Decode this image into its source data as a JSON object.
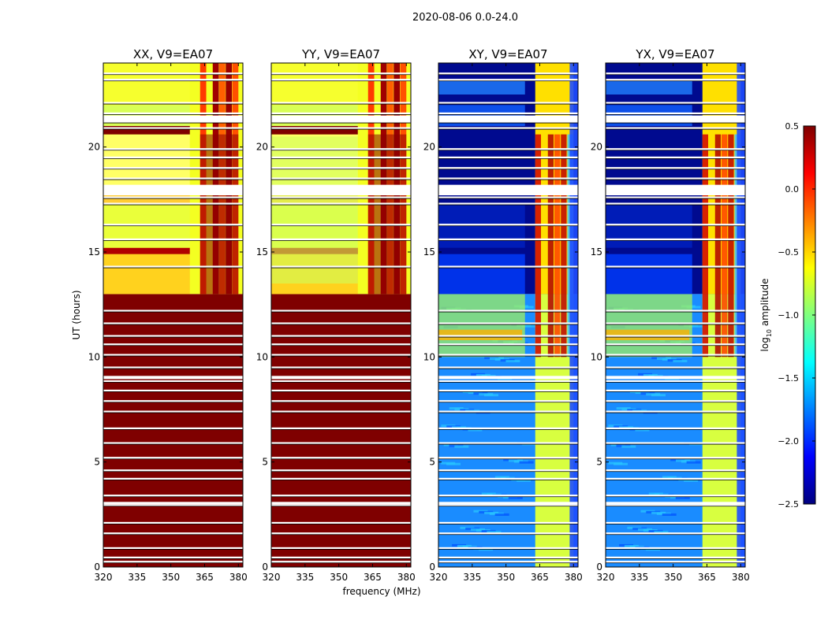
{
  "figure": {
    "suptitle": "2020-08-06 0.0-24.0"
  },
  "chart_data": {
    "type": "heatmap",
    "xlabel": "frequency (MHz)",
    "ylabel": "UT (hours)",
    "xlim": [
      320,
      382
    ],
    "ylim": [
      0,
      24
    ],
    "xticks": [
      "320",
      "335",
      "350",
      "365",
      "380"
    ],
    "xtick_values": [
      320,
      335,
      350,
      365,
      380
    ],
    "yticks": [
      "0",
      "5",
      "10",
      "15",
      "20"
    ],
    "ytick_values": [
      0,
      5,
      10,
      15,
      20
    ],
    "bright_band_mhz": [
      363,
      380
    ],
    "flagged_rows_ut": [
      0.25,
      0.45,
      0.9,
      1.6,
      2.1,
      2.95,
      3.4,
      4.2,
      4.6,
      5.2,
      5.9,
      6.6,
      7.4,
      7.9,
      8.4,
      8.85,
      9.5,
      10.1,
      10.6,
      11.0,
      11.6,
      12.2,
      14.3,
      15.6,
      16.3,
      17.3,
      17.6,
      18.5,
      19.0,
      19.5,
      19.9,
      20.9,
      21.2,
      21.6,
      22.1,
      23.2,
      23.5
    ],
    "panels": [
      {
        "name": "XX, V9=EA07",
        "polarization": "XX",
        "pattern": "parallel"
      },
      {
        "name": "YY, V9=EA07",
        "polarization": "YY",
        "pattern": "parallel"
      },
      {
        "name": "XY, V9=EA07",
        "polarization": "XY",
        "pattern": "cross"
      },
      {
        "name": "YX, V9=EA07",
        "polarization": "YX",
        "pattern": "cross"
      }
    ],
    "colorbar": {
      "label": "log",
      "label_sub": "10",
      "label_suffix": " amplitude",
      "range": [
        -2.5,
        0.5
      ],
      "ticks": [
        "0.5",
        "0.0",
        "−0.5",
        "−1.0",
        "−1.5",
        "−2.0",
        "−2.5"
      ],
      "tick_values": [
        0.5,
        0.0,
        -0.5,
        -1.0,
        -1.5,
        -2.0,
        -2.5
      ],
      "colormap": "jet"
    }
  }
}
